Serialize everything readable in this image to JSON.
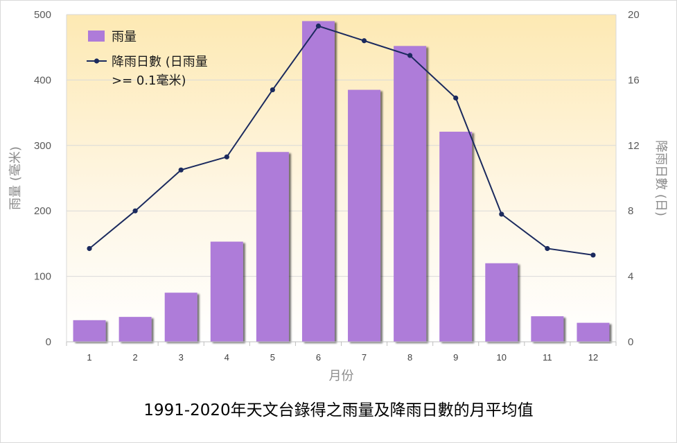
{
  "chart_data": {
    "type": "bar",
    "title": "1991-2020年天文台錄得之雨量及降雨日數的月平均值",
    "xlabel": "月份",
    "ylabel": "雨量 (毫米)",
    "y2label": "降雨日數 (日)",
    "categories": [
      "1",
      "2",
      "3",
      "4",
      "5",
      "6",
      "7",
      "8",
      "9",
      "10",
      "11",
      "12"
    ],
    "ylim": [
      0,
      500
    ],
    "yticks": [
      "0",
      "100",
      "200",
      "300",
      "400",
      "500"
    ],
    "y2lim": [
      0,
      20
    ],
    "y2ticks": [
      "0",
      "4",
      "8",
      "12",
      "16",
      "20"
    ],
    "grid": true,
    "legend_position": "top-left",
    "series": [
      {
        "name": "雨量",
        "type": "bar",
        "axis": "left",
        "color": "#ae7bd9",
        "values": [
          33,
          38,
          75,
          153,
          290,
          490,
          385,
          452,
          321,
          120,
          39,
          29
        ]
      },
      {
        "name": "降雨日數 (日雨量 >= 0.1毫米)",
        "legend_lines": [
          "降雨日數 (日雨量",
          ">= 0.1毫米)"
        ],
        "type": "line",
        "axis": "right",
        "color": "#1b2a5e",
        "values": [
          5.7,
          8.0,
          10.5,
          11.3,
          15.4,
          19.3,
          18.4,
          17.5,
          14.9,
          7.8,
          5.7,
          5.3
        ]
      }
    ]
  }
}
